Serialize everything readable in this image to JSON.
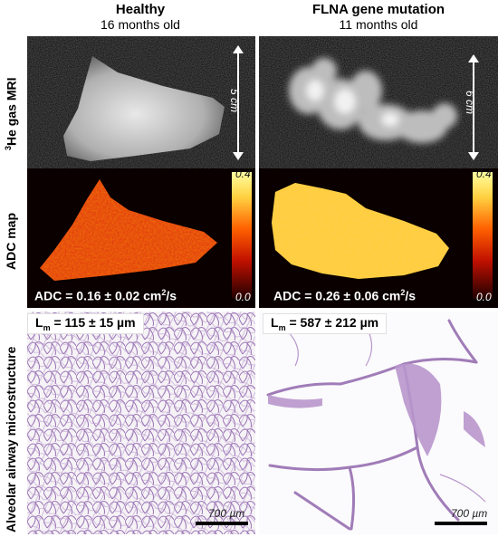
{
  "columns": [
    {
      "title": "Healthy",
      "subtitle": "16 months old"
    },
    {
      "title": "FLNA gene mutation",
      "subtitle": "11 months old"
    }
  ],
  "row_labels": {
    "mri_sup": "3",
    "mri": "He gas MRI",
    "adc": "ADC map",
    "micro": "Alveolar airway microstructure"
  },
  "mri": {
    "healthy_scale": "5 cm",
    "flna_scale": "6 cm"
  },
  "adc": {
    "colorbar_max": "0.4",
    "colorbar_min": "0.0",
    "healthy_label": "ADC = 0.16 ± 0.02 cm",
    "healthy_unit_sup": "2",
    "healthy_unit_tail": "/s",
    "flna_label": "ADC = 0.26 ± 0.06 cm",
    "flna_unit_sup": "2",
    "flna_unit_tail": "/s"
  },
  "histology": {
    "healthy_lm_prefix": "L",
    "healthy_lm_sub": "m",
    "healthy_lm_value": " = 115 ± 15 µm",
    "flna_lm_prefix": "L",
    "flna_lm_sub": "m",
    "flna_lm_value": " = 587 ± 212 µm",
    "scale_text": "700 µm"
  },
  "colors": {
    "adc_low": "#7a0000",
    "adc_mid": "#ff4000",
    "adc_high": "#ffff80",
    "tissue": "#a07cb8"
  }
}
